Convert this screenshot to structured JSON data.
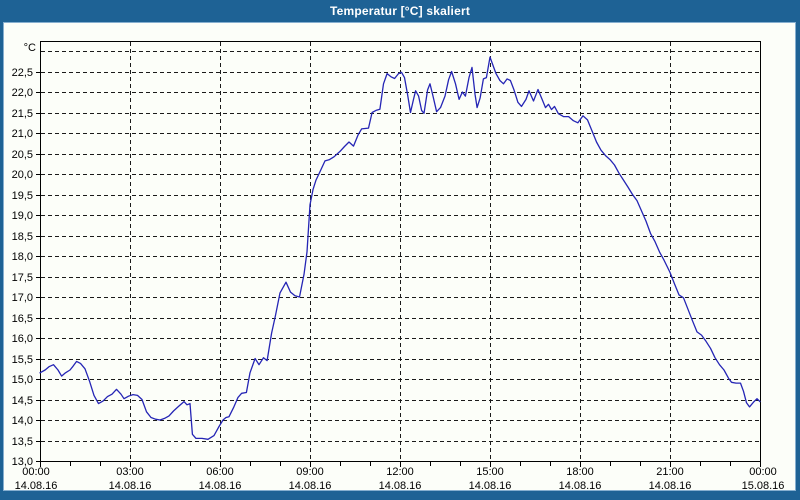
{
  "header": {
    "title": "Temperatur [°C] skaliert"
  },
  "colors": {
    "frame": "#1e6295",
    "frame_highlight": "#86afd0",
    "canvas": "#fcfef9",
    "grid": "#1a1a1a",
    "axis": "#000000",
    "line": "#2525b5",
    "title_text": "#ffffff",
    "label_text": "#000000"
  },
  "chart_data": {
    "type": "line",
    "title": "Temperatur [°C] skaliert",
    "grid": "on",
    "legend": "none",
    "y_axis": {
      "unit": "°C",
      "min": 13.0,
      "max": 23.25,
      "grid_min": 13.5,
      "grid_max": 23.0,
      "grid_step": 0.5,
      "ticks": [
        {
          "v": 13.0,
          "label": "13,0"
        },
        {
          "v": 13.5,
          "label": "13,5"
        },
        {
          "v": 14.0,
          "label": "14,0"
        },
        {
          "v": 14.5,
          "label": "14,5"
        },
        {
          "v": 15.0,
          "label": "15,0"
        },
        {
          "v": 15.5,
          "label": "15,5"
        },
        {
          "v": 16.0,
          "label": "16,0"
        },
        {
          "v": 16.5,
          "label": "16,5"
        },
        {
          "v": 17.0,
          "label": "17,0"
        },
        {
          "v": 17.5,
          "label": "17,5"
        },
        {
          "v": 18.0,
          "label": "18,0"
        },
        {
          "v": 18.5,
          "label": "18,5"
        },
        {
          "v": 19.0,
          "label": "19,0"
        },
        {
          "v": 19.5,
          "label": "19,5"
        },
        {
          "v": 20.0,
          "label": "20,0"
        },
        {
          "v": 20.5,
          "label": "20,5"
        },
        {
          "v": 21.0,
          "label": "21,0"
        },
        {
          "v": 21.5,
          "label": "21,5"
        },
        {
          "v": 22.0,
          "label": "22,0"
        },
        {
          "v": 22.5,
          "label": "22,5"
        }
      ]
    },
    "x_axis": {
      "min_hours": 0,
      "max_hours": 24,
      "minor_step_hours": 1,
      "major_ticks": [
        {
          "h": 0,
          "time": "00:00",
          "date": "14.08.16"
        },
        {
          "h": 3,
          "time": "03:00",
          "date": "14.08.16"
        },
        {
          "h": 6,
          "time": "06:00",
          "date": "14.08.16"
        },
        {
          "h": 9,
          "time": "09:00",
          "date": "14.08.16"
        },
        {
          "h": 12,
          "time": "12:00",
          "date": "14.08.16"
        },
        {
          "h": 15,
          "time": "15:00",
          "date": "14.08.16"
        },
        {
          "h": 18,
          "time": "18:00",
          "date": "14.08.16"
        },
        {
          "h": 21,
          "time": "21:00",
          "date": "14.08.16"
        },
        {
          "h": 24,
          "time": "00:00",
          "date": "15.08.16"
        }
      ]
    },
    "series": [
      {
        "name": "Temperatur [°C]",
        "points": [
          [
            0,
            15.15
          ],
          [
            0.17,
            15.22
          ],
          [
            0.3,
            15.3
          ],
          [
            0.45,
            15.35
          ],
          [
            0.6,
            15.22
          ],
          [
            0.72,
            15.07
          ],
          [
            0.85,
            15.15
          ],
          [
            1,
            15.22
          ],
          [
            1.1,
            15.31
          ],
          [
            1.22,
            15.43
          ],
          [
            1.35,
            15.38
          ],
          [
            1.5,
            15.25
          ],
          [
            1.65,
            14.95
          ],
          [
            1.8,
            14.6
          ],
          [
            1.95,
            14.4
          ],
          [
            2.1,
            14.46
          ],
          [
            2.25,
            14.57
          ],
          [
            2.4,
            14.63
          ],
          [
            2.55,
            14.75
          ],
          [
            2.7,
            14.63
          ],
          [
            2.8,
            14.52
          ],
          [
            2.95,
            14.58
          ],
          [
            3.1,
            14.62
          ],
          [
            3.25,
            14.6
          ],
          [
            3.4,
            14.5
          ],
          [
            3.55,
            14.2
          ],
          [
            3.7,
            14.06
          ],
          [
            3.85,
            14.02
          ],
          [
            4,
            14
          ],
          [
            4.15,
            14.04
          ],
          [
            4.3,
            14.1
          ],
          [
            4.45,
            14.22
          ],
          [
            4.6,
            14.32
          ],
          [
            4.8,
            14.45
          ],
          [
            4.9,
            14.37
          ],
          [
            5,
            14.4
          ],
          [
            5.08,
            13.65
          ],
          [
            5.2,
            13.55
          ],
          [
            5.4,
            13.55
          ],
          [
            5.6,
            13.53
          ],
          [
            5.8,
            13.62
          ],
          [
            5.95,
            13.82
          ],
          [
            6.1,
            14
          ],
          [
            6.2,
            14.06
          ],
          [
            6.3,
            14.08
          ],
          [
            6.45,
            14.3
          ],
          [
            6.6,
            14.55
          ],
          [
            6.72,
            14.65
          ],
          [
            6.88,
            14.67
          ],
          [
            7,
            15.15
          ],
          [
            7.17,
            15.5
          ],
          [
            7.3,
            15.35
          ],
          [
            7.45,
            15.52
          ],
          [
            7.57,
            15.45
          ],
          [
            7.72,
            16.12
          ],
          [
            7.85,
            16.55
          ],
          [
            8,
            17.1
          ],
          [
            8.2,
            17.36
          ],
          [
            8.35,
            17.12
          ],
          [
            8.5,
            17.03
          ],
          [
            8.65,
            17
          ],
          [
            8.8,
            17.55
          ],
          [
            8.9,
            18.1
          ],
          [
            9,
            19.25
          ],
          [
            9.1,
            19.62
          ],
          [
            9.2,
            19.85
          ],
          [
            9.33,
            20.05
          ],
          [
            9.5,
            20.32
          ],
          [
            9.65,
            20.35
          ],
          [
            9.8,
            20.42
          ],
          [
            10,
            20.55
          ],
          [
            10.15,
            20.67
          ],
          [
            10.3,
            20.78
          ],
          [
            10.45,
            20.68
          ],
          [
            10.6,
            20.95
          ],
          [
            10.72,
            21.1
          ],
          [
            10.95,
            21.12
          ],
          [
            11.07,
            21.5
          ],
          [
            11.2,
            21.55
          ],
          [
            11.33,
            21.58
          ],
          [
            11.45,
            22.2
          ],
          [
            11.57,
            22.45
          ],
          [
            11.7,
            22.37
          ],
          [
            11.82,
            22.33
          ],
          [
            11.95,
            22.45
          ],
          [
            12.05,
            22.48
          ],
          [
            12.15,
            22.35
          ],
          [
            12.25,
            21.95
          ],
          [
            12.35,
            21.5
          ],
          [
            12.45,
            21.82
          ],
          [
            12.52,
            22.03
          ],
          [
            12.62,
            21.9
          ],
          [
            12.72,
            21.55
          ],
          [
            12.8,
            21.48
          ],
          [
            12.92,
            22.05
          ],
          [
            13,
            22.2
          ],
          [
            13.1,
            21.9
          ],
          [
            13.22,
            21.52
          ],
          [
            13.35,
            21.62
          ],
          [
            13.5,
            21.9
          ],
          [
            13.62,
            22.3
          ],
          [
            13.72,
            22.5
          ],
          [
            13.85,
            22.2
          ],
          [
            13.97,
            21.82
          ],
          [
            14.08,
            22
          ],
          [
            14.18,
            21.9
          ],
          [
            14.3,
            22.35
          ],
          [
            14.4,
            22.6
          ],
          [
            14.5,
            21.95
          ],
          [
            14.57,
            21.62
          ],
          [
            14.67,
            21.85
          ],
          [
            14.78,
            22.32
          ],
          [
            14.88,
            22.35
          ],
          [
            15,
            22.85
          ],
          [
            15.1,
            22.65
          ],
          [
            15.2,
            22.45
          ],
          [
            15.33,
            22.28
          ],
          [
            15.45,
            22.2
          ],
          [
            15.57,
            22.32
          ],
          [
            15.68,
            22.28
          ],
          [
            15.8,
            22.05
          ],
          [
            15.93,
            21.75
          ],
          [
            16.05,
            21.65
          ],
          [
            16.2,
            21.82
          ],
          [
            16.3,
            22.03
          ],
          [
            16.45,
            21.78
          ],
          [
            16.6,
            22.06
          ],
          [
            16.72,
            21.85
          ],
          [
            16.85,
            21.62
          ],
          [
            16.95,
            21.7
          ],
          [
            17.05,
            21.57
          ],
          [
            17.15,
            21.65
          ],
          [
            17.28,
            21.47
          ],
          [
            17.45,
            21.4
          ],
          [
            17.62,
            21.4
          ],
          [
            17.78,
            21.3
          ],
          [
            17.93,
            21.25
          ],
          [
            18.1,
            21.42
          ],
          [
            18.25,
            21.32
          ],
          [
            18.4,
            21.05
          ],
          [
            18.55,
            20.78
          ],
          [
            18.7,
            20.58
          ],
          [
            18.85,
            20.45
          ],
          [
            19,
            20.35
          ],
          [
            19.15,
            20.22
          ],
          [
            19.3,
            20.02
          ],
          [
            19.45,
            19.85
          ],
          [
            19.6,
            19.68
          ],
          [
            19.75,
            19.5
          ],
          [
            19.9,
            19.35
          ],
          [
            20.05,
            19.1
          ],
          [
            20.2,
            18.85
          ],
          [
            20.35,
            18.55
          ],
          [
            20.5,
            18.35
          ],
          [
            20.65,
            18.1
          ],
          [
            20.8,
            17.9
          ],
          [
            21,
            17.6
          ],
          [
            21.15,
            17.32
          ],
          [
            21.3,
            17.05
          ],
          [
            21.45,
            16.98
          ],
          [
            21.6,
            16.7
          ],
          [
            21.75,
            16.42
          ],
          [
            21.9,
            16.15
          ],
          [
            22.05,
            16.07
          ],
          [
            22.2,
            15.92
          ],
          [
            22.35,
            15.75
          ],
          [
            22.5,
            15.52
          ],
          [
            22.65,
            15.35
          ],
          [
            22.8,
            15.22
          ],
          [
            22.95,
            15.02
          ],
          [
            23.05,
            14.92
          ],
          [
            23.2,
            14.9
          ],
          [
            23.35,
            14.9
          ],
          [
            23.45,
            14.7
          ],
          [
            23.55,
            14.42
          ],
          [
            23.65,
            14.32
          ],
          [
            23.8,
            14.45
          ],
          [
            23.9,
            14.52
          ],
          [
            24,
            14.45
          ]
        ]
      }
    ]
  }
}
